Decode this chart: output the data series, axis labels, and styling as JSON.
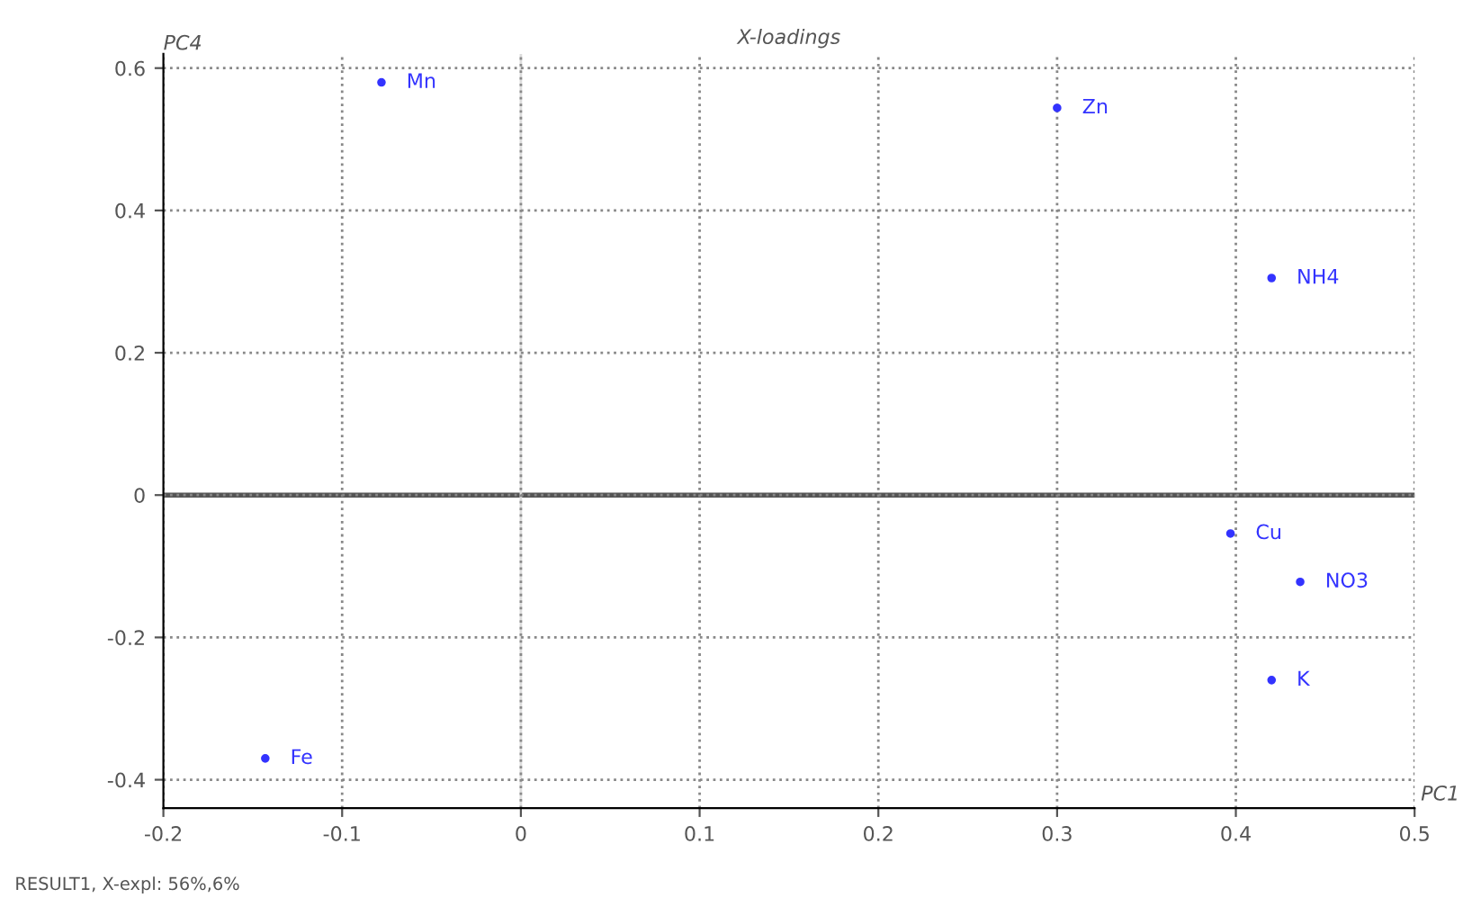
{
  "chart_data": {
    "type": "scatter",
    "title": "X-loadings",
    "xlabel": "PC1",
    "ylabel": "PC4",
    "series": [
      {
        "color": "#3333ff",
        "x": [
          -0.078,
          0.3,
          0.42,
          0.397,
          0.436,
          0.42,
          -0.143
        ],
        "values": [
          0.58,
          0.544,
          0.305,
          -0.054,
          -0.122,
          -0.26,
          -0.37
        ]
      }
    ],
    "annotations": [
      {
        "text": "Mn",
        "x": -0.078,
        "y": 0.58
      },
      {
        "text": "Zn",
        "x": 0.3,
        "y": 0.544
      },
      {
        "text": "NH4",
        "x": 0.42,
        "y": 0.305
      },
      {
        "text": "Cu",
        "x": 0.397,
        "y": -0.054
      },
      {
        "text": "NO3",
        "x": 0.436,
        "y": -0.122
      },
      {
        "text": "K",
        "x": 0.42,
        "y": -0.26
      },
      {
        "text": "Fe",
        "x": -0.143,
        "y": -0.37
      },
      "RESULT1, X-expl: 56%,6%"
    ],
    "xlim": [
      -0.2,
      0.5
    ],
    "ylim": [
      -0.44,
      0.62
    ],
    "xticks": [
      -0.2,
      -0.1,
      0,
      0.1,
      0.2,
      0.3,
      0.4,
      0.5
    ],
    "yticks": [
      -0.4,
      -0.2,
      0,
      0.2,
      0.4,
      0.6
    ],
    "ref_lines": [
      {
        "axis": "y",
        "value": 0,
        "color": "#555555"
      },
      {
        "axis": "x",
        "value": 0,
        "color": "#dddddd"
      }
    ],
    "grid": true,
    "marker": "circle"
  }
}
